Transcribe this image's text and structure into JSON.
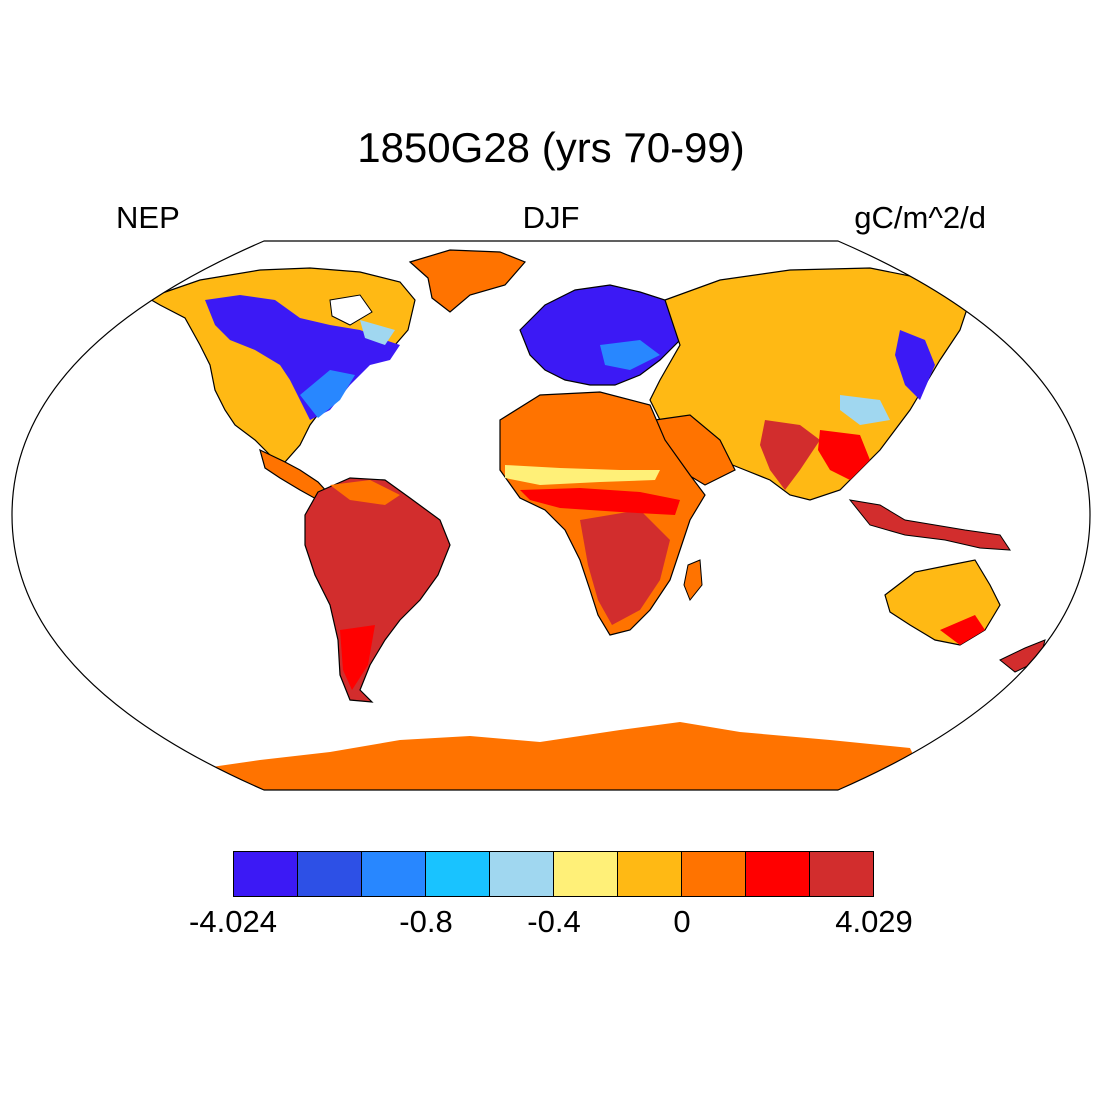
{
  "header": {
    "title": "1850G28 (yrs 70-99)",
    "left": "NEP",
    "center": "DJF",
    "right": "gC/m^2/d"
  },
  "colorbar": {
    "colors": [
      "#3c19f5",
      "#2d50e6",
      "#2887ff",
      "#19c3ff",
      "#a0d7f0",
      "#fff078",
      "#ffb914",
      "#ff7300",
      "#ff0000",
      "#d22d2d"
    ],
    "tick_labels": [
      "-4.024",
      "-0.8",
      "-0.4",
      "0",
      "4.029"
    ]
  },
  "map": {
    "projection": "robinson",
    "ocean_color": "#ffffff"
  }
}
